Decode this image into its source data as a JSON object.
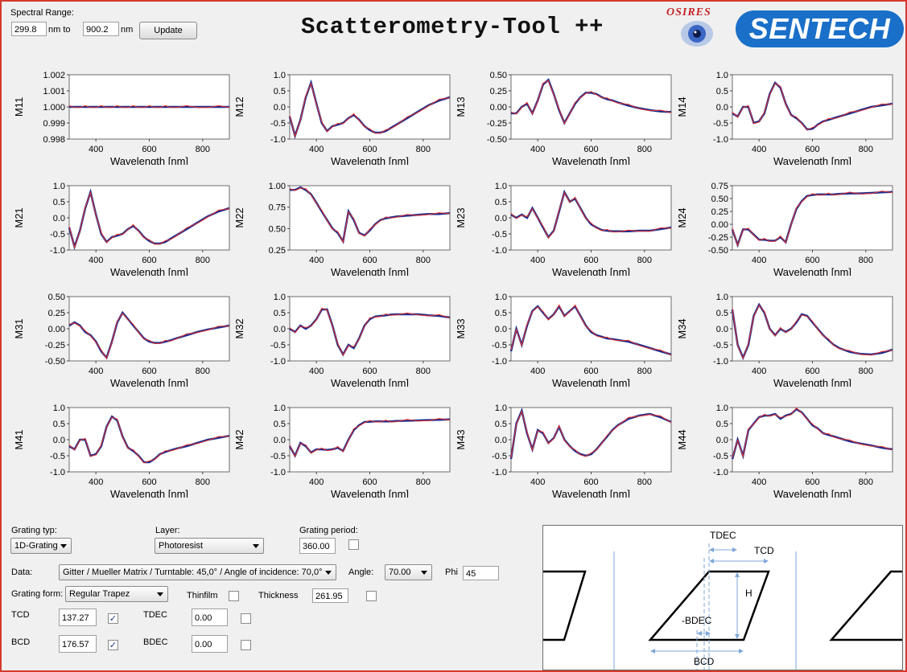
{
  "spectral": {
    "label": "Spectral Range:",
    "from_value": "299.8",
    "to_value": "900.2",
    "unit_from": "nm  to",
    "unit_to": "nm",
    "update_label": "Update"
  },
  "app_title": "Scatterometry-Tool ++",
  "logos": {
    "osires": "OSIRES",
    "sentech": "SENTECH"
  },
  "plots": [
    {
      "label": "M11",
      "yticks": [
        "1.002",
        "1.001",
        "1.000",
        "0.999",
        "0.998"
      ],
      "ylim": [
        0.998,
        1.002
      ]
    },
    {
      "label": "M12",
      "yticks": [
        "1.0",
        "0.5",
        "0.0",
        "-0.5",
        "-1.0"
      ],
      "ylim": [
        -1.0,
        1.0
      ]
    },
    {
      "label": "M13",
      "yticks": [
        "0.50",
        "0.25",
        "0.00",
        "-0.25",
        "-0.50"
      ],
      "ylim": [
        -0.5,
        0.5
      ]
    },
    {
      "label": "M14",
      "yticks": [
        "1.0",
        "0.5",
        "0.0",
        "-0.5",
        "-1.0"
      ],
      "ylim": [
        -1.0,
        1.0
      ]
    },
    {
      "label": "M21",
      "yticks": [
        "1.0",
        "0.5",
        "0.0",
        "-0.5",
        "-1.0"
      ],
      "ylim": [
        -1.0,
        1.0
      ]
    },
    {
      "label": "M22",
      "yticks": [
        "1.00",
        "0.75",
        "0.50",
        "0.25"
      ],
      "ylim": [
        0.25,
        1.0
      ]
    },
    {
      "label": "M23",
      "yticks": [
        "1.0",
        "0.5",
        "0.0",
        "-0.5",
        "-1.0"
      ],
      "ylim": [
        -1.0,
        1.0
      ]
    },
    {
      "label": "M24",
      "yticks": [
        "0.75",
        "0.50",
        "0.25",
        "0.00",
        "-0.25",
        "-0.50"
      ],
      "ylim": [
        -0.5,
        0.75
      ]
    },
    {
      "label": "M31",
      "yticks": [
        "0.50",
        "0.25",
        "0.00",
        "-0.25",
        "-0.50"
      ],
      "ylim": [
        -0.5,
        0.5
      ]
    },
    {
      "label": "M32",
      "yticks": [
        "1.0",
        "0.5",
        "0.0",
        "-0.5",
        "-1.0"
      ],
      "ylim": [
        -1.0,
        1.0
      ]
    },
    {
      "label": "M33",
      "yticks": [
        "1.0",
        "0.5",
        "0.0",
        "-0.5",
        "-1.0"
      ],
      "ylim": [
        -1.0,
        1.0
      ]
    },
    {
      "label": "M34",
      "yticks": [
        "1.0",
        "0.5",
        "0.0",
        "-0.5",
        "-1.0"
      ],
      "ylim": [
        -1.0,
        1.0
      ]
    },
    {
      "label": "M41",
      "yticks": [
        "1.0",
        "0.5",
        "0.0",
        "-0.5",
        "-1.0"
      ],
      "ylim": [
        -1.0,
        1.0
      ]
    },
    {
      "label": "M42",
      "yticks": [
        "1.0",
        "0.5",
        "0.0",
        "-0.5",
        "-1.0"
      ],
      "ylim": [
        -1.0,
        1.0
      ]
    },
    {
      "label": "M43",
      "yticks": [
        "1.0",
        "0.5",
        "0.0",
        "-0.5",
        "-1.0"
      ],
      "ylim": [
        -1.0,
        1.0
      ]
    },
    {
      "label": "M44",
      "yticks": [
        "1.0",
        "0.5",
        "0.0",
        "-0.5",
        "-1.0"
      ],
      "ylim": [
        -1.0,
        1.0
      ]
    }
  ],
  "x_axis": {
    "label": "Wavelength [nm]",
    "ticks": [
      "400",
      "600",
      "800"
    ],
    "xlim": [
      300,
      900
    ]
  },
  "series_colors": {
    "measured": "#1b2d8f",
    "fit": "#e8322a"
  },
  "chart_data": {
    "type": "line",
    "xlim": [
      300,
      900
    ],
    "xlabel": "Wavelength [nm]",
    "x": [
      300,
      320,
      340,
      360,
      380,
      400,
      420,
      440,
      460,
      480,
      500,
      520,
      540,
      560,
      580,
      600,
      620,
      640,
      660,
      680,
      700,
      740,
      780,
      820,
      860,
      900
    ],
    "matrices": [
      {
        "name": "M11",
        "values": [
          1,
          1,
          1,
          1,
          1,
          1,
          1,
          1,
          1,
          1,
          1,
          1,
          1,
          1,
          1,
          1,
          1,
          1,
          1,
          1,
          1,
          1,
          1,
          1,
          1,
          1
        ]
      },
      {
        "name": "M12",
        "values": [
          -0.3,
          -0.9,
          -0.4,
          0.3,
          0.75,
          0.1,
          -0.5,
          -0.75,
          -0.6,
          -0.55,
          -0.5,
          -0.35,
          -0.25,
          -0.4,
          -0.6,
          -0.72,
          -0.8,
          -0.8,
          -0.75,
          -0.65,
          -0.55,
          -0.35,
          -0.15,
          0.05,
          0.2,
          0.3
        ]
      },
      {
        "name": "M13",
        "values": [
          -0.1,
          -0.1,
          0.0,
          0.05,
          -0.1,
          0.1,
          0.35,
          0.42,
          0.2,
          -0.05,
          -0.25,
          -0.1,
          0.05,
          0.15,
          0.22,
          0.22,
          0.2,
          0.15,
          0.12,
          0.1,
          0.07,
          0.02,
          -0.02,
          -0.05,
          -0.07,
          -0.08
        ]
      },
      {
        "name": "M14",
        "values": [
          -0.2,
          -0.3,
          0.0,
          0.0,
          -0.5,
          -0.45,
          -0.2,
          0.4,
          0.75,
          0.6,
          0.1,
          -0.25,
          -0.35,
          -0.5,
          -0.7,
          -0.68,
          -0.55,
          -0.45,
          -0.4,
          -0.35,
          -0.3,
          -0.2,
          -0.1,
          0.0,
          0.05,
          0.1
        ]
      },
      {
        "name": "M21",
        "values": [
          -0.3,
          -0.9,
          -0.4,
          0.3,
          0.8,
          0.1,
          -0.5,
          -0.75,
          -0.6,
          -0.55,
          -0.5,
          -0.35,
          -0.25,
          -0.4,
          -0.6,
          -0.72,
          -0.8,
          -0.8,
          -0.75,
          -0.65,
          -0.55,
          -0.35,
          -0.15,
          0.05,
          0.2,
          0.3
        ]
      },
      {
        "name": "M22",
        "values": [
          0.95,
          0.95,
          0.98,
          0.95,
          0.9,
          0.8,
          0.7,
          0.6,
          0.5,
          0.45,
          0.35,
          0.7,
          0.6,
          0.45,
          0.42,
          0.48,
          0.55,
          0.6,
          0.62,
          0.63,
          0.64,
          0.65,
          0.66,
          0.67,
          0.67,
          0.68
        ]
      },
      {
        "name": "M23",
        "values": [
          0.1,
          0.0,
          0.1,
          0.0,
          0.3,
          0.0,
          -0.3,
          -0.6,
          -0.4,
          0.2,
          0.8,
          0.5,
          0.6,
          0.3,
          0.0,
          -0.2,
          -0.3,
          -0.38,
          -0.4,
          -0.42,
          -0.42,
          -0.42,
          -0.4,
          -0.4,
          -0.35,
          -0.3
        ]
      },
      {
        "name": "M24",
        "values": [
          -0.1,
          -0.4,
          -0.1,
          -0.1,
          -0.2,
          -0.3,
          -0.3,
          -0.32,
          -0.32,
          -0.25,
          -0.35,
          0.0,
          0.3,
          0.45,
          0.55,
          0.57,
          0.58,
          0.58,
          0.58,
          0.58,
          0.59,
          0.6,
          0.6,
          0.61,
          0.62,
          0.63
        ]
      },
      {
        "name": "M31",
        "values": [
          0.05,
          0.1,
          0.05,
          -0.05,
          -0.1,
          -0.2,
          -0.35,
          -0.45,
          -0.2,
          0.1,
          0.25,
          0.15,
          0.05,
          -0.05,
          -0.15,
          -0.2,
          -0.22,
          -0.22,
          -0.2,
          -0.18,
          -0.15,
          -0.1,
          -0.05,
          -0.01,
          0.02,
          0.05
        ]
      },
      {
        "name": "M32",
        "values": [
          0.0,
          -0.1,
          0.1,
          0.0,
          0.1,
          0.3,
          0.6,
          0.6,
          0.1,
          -0.5,
          -0.8,
          -0.5,
          -0.6,
          -0.3,
          0.1,
          0.3,
          0.38,
          0.4,
          0.42,
          0.44,
          0.45,
          0.45,
          0.45,
          0.42,
          0.4,
          0.35
        ]
      },
      {
        "name": "M33",
        "values": [
          -0.7,
          0.0,
          -0.5,
          0.1,
          0.55,
          0.7,
          0.5,
          0.3,
          0.45,
          0.7,
          0.4,
          0.55,
          0.7,
          0.4,
          0.1,
          -0.1,
          -0.2,
          -0.25,
          -0.3,
          -0.32,
          -0.35,
          -0.4,
          -0.5,
          -0.6,
          -0.7,
          -0.8
        ]
      },
      {
        "name": "M34",
        "values": [
          0.6,
          -0.5,
          -0.9,
          -0.5,
          0.4,
          0.75,
          0.5,
          0.0,
          -0.2,
          0.0,
          -0.1,
          0.0,
          0.2,
          0.45,
          0.4,
          0.2,
          0.0,
          -0.2,
          -0.35,
          -0.5,
          -0.6,
          -0.72,
          -0.78,
          -0.8,
          -0.75,
          -0.65
        ]
      },
      {
        "name": "M41",
        "values": [
          -0.2,
          -0.3,
          0.0,
          0.0,
          -0.5,
          -0.45,
          -0.2,
          0.4,
          0.72,
          0.6,
          0.1,
          -0.25,
          -0.35,
          -0.5,
          -0.7,
          -0.7,
          -0.6,
          -0.45,
          -0.38,
          -0.33,
          -0.28,
          -0.2,
          -0.1,
          0.0,
          0.06,
          0.12
        ]
      },
      {
        "name": "M42",
        "values": [
          -0.2,
          -0.5,
          -0.1,
          -0.2,
          -0.4,
          -0.3,
          -0.3,
          -0.32,
          -0.3,
          -0.25,
          -0.35,
          0.0,
          0.3,
          0.45,
          0.55,
          0.56,
          0.57,
          0.57,
          0.57,
          0.57,
          0.58,
          0.59,
          0.6,
          0.61,
          0.62,
          0.63
        ]
      },
      {
        "name": "M43",
        "values": [
          -0.6,
          0.5,
          0.9,
          0.2,
          -0.3,
          0.3,
          0.2,
          -0.1,
          0.05,
          0.4,
          0.0,
          -0.2,
          -0.35,
          -0.45,
          -0.5,
          -0.45,
          -0.3,
          -0.1,
          0.1,
          0.3,
          0.45,
          0.65,
          0.75,
          0.8,
          0.7,
          0.55
        ]
      },
      {
        "name": "M44",
        "values": [
          -0.6,
          0.0,
          -0.5,
          0.3,
          0.5,
          0.7,
          0.75,
          0.75,
          0.8,
          0.65,
          0.75,
          0.8,
          0.95,
          0.85,
          0.65,
          0.45,
          0.35,
          0.2,
          0.15,
          0.1,
          0.05,
          -0.05,
          -0.12,
          -0.18,
          -0.25,
          -0.3
        ]
      }
    ]
  },
  "grating_typ": {
    "label": "Grating typ:",
    "value": "1D-Grating"
  },
  "layer": {
    "label": "Layer:",
    "value": "Photoresist"
  },
  "grating_period": {
    "label": "Grating period:",
    "value": "360.00"
  },
  "data_row": {
    "label": "Data:",
    "value": "Gitter / Mueller Matrix / Turntable: 45,0° / Angle of incidence: 70,0°",
    "angle_label": "Angle:",
    "angle_value": "70.00",
    "phi_label": "Phi",
    "phi_value": "45"
  },
  "grating_form": {
    "label": "Grating form:",
    "value": "Regular Trapez",
    "thinfilm_label": "Thinfilm",
    "thickness_label": "Thickness",
    "thickness_value": "261.95"
  },
  "params": {
    "tcd_label": "TCD",
    "tcd_value": "137.27",
    "tdec_label": "TDEC",
    "tdec_value": "0.00",
    "bcd_label": "BCD",
    "bcd_value": "176.57",
    "bdec_label": "BDEC",
    "bdec_value": "0.00"
  },
  "diagram": {
    "tdec": "TDEC",
    "tcd": "TCD",
    "h": "H",
    "bdec": "-BDEC",
    "bcd": "BCD"
  }
}
